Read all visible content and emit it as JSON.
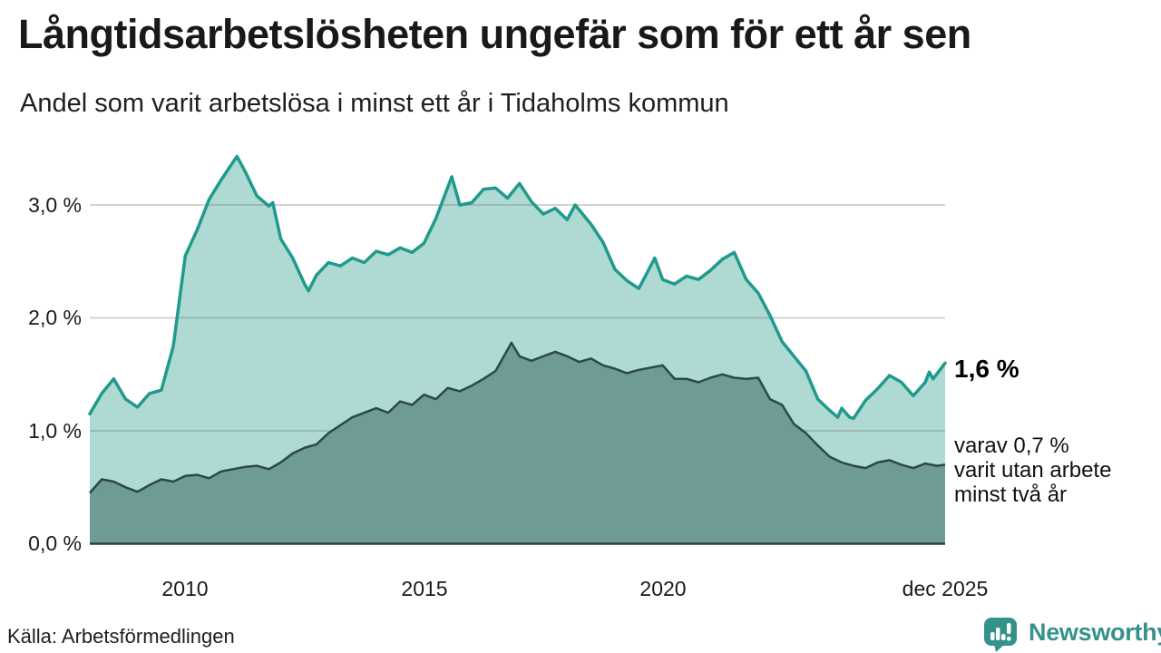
{
  "header": {
    "title": "Långtidsarbetslösheten ungefär som för ett år sen",
    "subtitle": "Andel som varit arbetslösa i minst ett år i Tidaholms kommun"
  },
  "chart_data": {
    "type": "area",
    "title": "Långtidsarbetslösheten ungefär som för ett år sen",
    "subtitle": "Andel som varit arbetslösa i minst ett år i Tidaholms kommun",
    "unit": "%",
    "x_unit": "months since 2008-01",
    "x_axis": {
      "ticks": [
        "2010",
        "2015",
        "2020",
        "dec 2025"
      ],
      "tick_months": [
        24,
        84,
        144,
        215
      ]
    },
    "y_axis": {
      "ticks": [
        "0,0 %",
        "1,0 %",
        "2,0 %",
        "3,0 %"
      ],
      "values": [
        0,
        1,
        2,
        3
      ],
      "range": [
        0,
        3.5
      ],
      "grid": true
    },
    "legend_position": "none",
    "series": [
      {
        "name": "Andel som varit arbetslösa i minst ett år",
        "line_color": "#1f9a8c",
        "fill_color": "#aedad3",
        "end_value": 1.6,
        "end_label": "1,6 %",
        "points": [
          [
            0,
            1.15
          ],
          [
            3,
            1.33
          ],
          [
            6,
            1.46
          ],
          [
            9,
            1.28
          ],
          [
            12,
            1.21
          ],
          [
            15,
            1.33
          ],
          [
            18,
            1.36
          ],
          [
            21,
            1.75
          ],
          [
            24,
            2.55
          ],
          [
            27,
            2.78
          ],
          [
            30,
            3.05
          ],
          [
            33,
            3.22
          ],
          [
            36,
            3.38
          ],
          [
            37,
            3.43
          ],
          [
            39,
            3.3
          ],
          [
            42,
            3.08
          ],
          [
            45,
            2.99
          ],
          [
            46,
            3.02
          ],
          [
            48,
            2.7
          ],
          [
            51,
            2.53
          ],
          [
            54,
            2.3
          ],
          [
            55,
            2.24
          ],
          [
            57,
            2.38
          ],
          [
            60,
            2.49
          ],
          [
            63,
            2.46
          ],
          [
            66,
            2.53
          ],
          [
            69,
            2.49
          ],
          [
            72,
            2.59
          ],
          [
            75,
            2.56
          ],
          [
            78,
            2.62
          ],
          [
            81,
            2.58
          ],
          [
            84,
            2.66
          ],
          [
            87,
            2.88
          ],
          [
            91,
            3.25
          ],
          [
            93,
            3.0
          ],
          [
            96,
            3.02
          ],
          [
            99,
            3.14
          ],
          [
            102,
            3.15
          ],
          [
            105,
            3.06
          ],
          [
            108,
            3.19
          ],
          [
            111,
            3.03
          ],
          [
            114,
            2.92
          ],
          [
            117,
            2.97
          ],
          [
            120,
            2.87
          ],
          [
            122,
            3.0
          ],
          [
            126,
            2.83
          ],
          [
            129,
            2.67
          ],
          [
            132,
            2.43
          ],
          [
            135,
            2.33
          ],
          [
            138,
            2.26
          ],
          [
            141,
            2.46
          ],
          [
            142,
            2.53
          ],
          [
            144,
            2.34
          ],
          [
            147,
            2.3
          ],
          [
            150,
            2.37
          ],
          [
            153,
            2.34
          ],
          [
            156,
            2.42
          ],
          [
            159,
            2.52
          ],
          [
            162,
            2.58
          ],
          [
            165,
            2.34
          ],
          [
            168,
            2.22
          ],
          [
            171,
            2.02
          ],
          [
            174,
            1.79
          ],
          [
            177,
            1.66
          ],
          [
            180,
            1.53
          ],
          [
            183,
            1.28
          ],
          [
            186,
            1.18
          ],
          [
            188,
            1.12
          ],
          [
            189,
            1.2
          ],
          [
            191,
            1.12
          ],
          [
            192,
            1.11
          ],
          [
            195,
            1.27
          ],
          [
            198,
            1.37
          ],
          [
            201,
            1.49
          ],
          [
            204,
            1.43
          ],
          [
            207,
            1.31
          ],
          [
            210,
            1.43
          ],
          [
            211,
            1.52
          ],
          [
            212,
            1.46
          ],
          [
            215,
            1.6
          ]
        ]
      },
      {
        "name": "Varav utan arbete minst två år",
        "line_color": "#2b4845",
        "fill_color": "#6f9b95",
        "end_value": 0.7,
        "points": [
          [
            0,
            0.45
          ],
          [
            3,
            0.57
          ],
          [
            6,
            0.55
          ],
          [
            9,
            0.5
          ],
          [
            12,
            0.46
          ],
          [
            15,
            0.52
          ],
          [
            18,
            0.57
          ],
          [
            21,
            0.55
          ],
          [
            24,
            0.6
          ],
          [
            27,
            0.61
          ],
          [
            30,
            0.58
          ],
          [
            33,
            0.64
          ],
          [
            36,
            0.66
          ],
          [
            39,
            0.68
          ],
          [
            42,
            0.69
          ],
          [
            45,
            0.66
          ],
          [
            48,
            0.72
          ],
          [
            51,
            0.8
          ],
          [
            54,
            0.85
          ],
          [
            57,
            0.88
          ],
          [
            60,
            0.98
          ],
          [
            63,
            1.05
          ],
          [
            66,
            1.12
          ],
          [
            69,
            1.16
          ],
          [
            72,
            1.2
          ],
          [
            75,
            1.16
          ],
          [
            78,
            1.26
          ],
          [
            81,
            1.23
          ],
          [
            84,
            1.32
          ],
          [
            87,
            1.28
          ],
          [
            90,
            1.38
          ],
          [
            93,
            1.35
          ],
          [
            96,
            1.4
          ],
          [
            99,
            1.46
          ],
          [
            102,
            1.53
          ],
          [
            106,
            1.78
          ],
          [
            108,
            1.66
          ],
          [
            111,
            1.62
          ],
          [
            114,
            1.66
          ],
          [
            117,
            1.7
          ],
          [
            120,
            1.66
          ],
          [
            123,
            1.61
          ],
          [
            126,
            1.64
          ],
          [
            129,
            1.58
          ],
          [
            132,
            1.55
          ],
          [
            135,
            1.51
          ],
          [
            138,
            1.54
          ],
          [
            141,
            1.56
          ],
          [
            144,
            1.58
          ],
          [
            147,
            1.46
          ],
          [
            150,
            1.46
          ],
          [
            153,
            1.43
          ],
          [
            156,
            1.47
          ],
          [
            159,
            1.5
          ],
          [
            162,
            1.47
          ],
          [
            165,
            1.46
          ],
          [
            168,
            1.47
          ],
          [
            171,
            1.28
          ],
          [
            174,
            1.23
          ],
          [
            177,
            1.06
          ],
          [
            180,
            0.98
          ],
          [
            183,
            0.87
          ],
          [
            186,
            0.77
          ],
          [
            189,
            0.72
          ],
          [
            192,
            0.69
          ],
          [
            195,
            0.67
          ],
          [
            198,
            0.72
          ],
          [
            201,
            0.74
          ],
          [
            204,
            0.7
          ],
          [
            207,
            0.67
          ],
          [
            210,
            0.71
          ],
          [
            213,
            0.69
          ],
          [
            215,
            0.7
          ]
        ]
      }
    ],
    "annotations": {
      "end_label": "1,6 %",
      "secondary_line1": "varav 0,7 %",
      "secondary_line2": "varit utan arbete",
      "secondary_line3": "minst två år"
    }
  },
  "footer": {
    "source": "Källa: Arbetsförmedlingen",
    "brand": "Newsworthy"
  },
  "colors": {
    "accent_teal": "#1f9a8c",
    "light_fill": "#aedad3",
    "dark_fill": "#6f9b95",
    "dark_line": "#2b4845",
    "grid": "#d9d9d9",
    "baseline": "#2c403d",
    "text": "#1a1a1a",
    "brand_teal": "#35928a"
  }
}
